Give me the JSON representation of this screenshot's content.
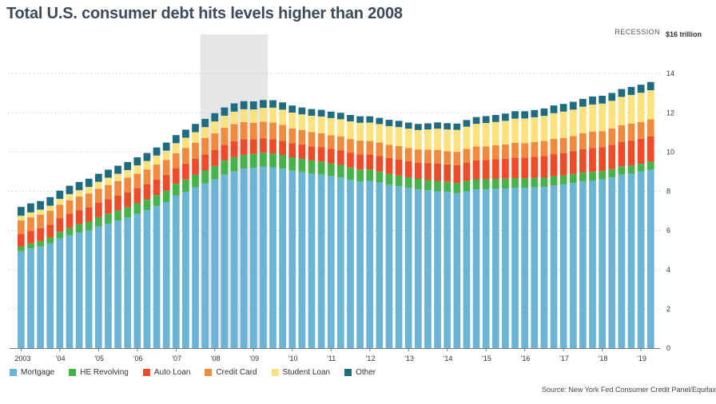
{
  "header": {
    "title": "Total U.S. consumer debt hits levels higher than 2008",
    "recession_label": "RECESSION",
    "unit_label": "$16 trillion"
  },
  "source": "Source: New York Fed Consumer Credit Panel/Equifax",
  "colors": {
    "mortgage": "#6bb4d6",
    "he_revolving": "#45b24a",
    "auto_loan": "#ee4b2b",
    "credit_card": "#f08a3c",
    "student_loan": "#fbe27c",
    "other": "#1f6b80",
    "recession": "#e5e6e8",
    "grid": "#c9cdd2"
  },
  "chart_data": {
    "type": "bar",
    "stacked": true,
    "title": "Total U.S. consumer debt hits levels higher than 2008",
    "xlabel": "",
    "ylabel": "",
    "ylim": [
      0,
      16
    ],
    "y_ticks": [
      0,
      2,
      4,
      6,
      8,
      10,
      12,
      14
    ],
    "x_tick_labels": [
      "2003",
      "'04",
      "'05",
      "'06",
      "'07",
      "'08",
      "'09",
      "'10",
      "'11",
      "'12",
      "'13",
      "'14",
      "'15",
      "'16",
      "'17",
      "'18",
      "'19"
    ],
    "recession_span_quarters": [
      19,
      26
    ],
    "series_names": [
      "Mortgage",
      "HE Revolving",
      "Auto Loan",
      "Credit Card",
      "Student Loan",
      "Other"
    ],
    "quarters": [
      "2003Q1",
      "2003Q2",
      "2003Q3",
      "2003Q4",
      "2004Q1",
      "2004Q2",
      "2004Q3",
      "2004Q4",
      "2005Q1",
      "2005Q2",
      "2005Q3",
      "2005Q4",
      "2006Q1",
      "2006Q2",
      "2006Q3",
      "2006Q4",
      "2007Q1",
      "2007Q2",
      "2007Q3",
      "2007Q4",
      "2008Q1",
      "2008Q2",
      "2008Q3",
      "2008Q4",
      "2009Q1",
      "2009Q2",
      "2009Q3",
      "2009Q4",
      "2010Q1",
      "2010Q2",
      "2010Q3",
      "2010Q4",
      "2011Q1",
      "2011Q2",
      "2011Q3",
      "2011Q4",
      "2012Q1",
      "2012Q2",
      "2012Q3",
      "2012Q4",
      "2013Q1",
      "2013Q2",
      "2013Q3",
      "2013Q4",
      "2014Q1",
      "2014Q2",
      "2014Q3",
      "2014Q4",
      "2015Q1",
      "2015Q2",
      "2015Q3",
      "2015Q4",
      "2016Q1",
      "2016Q2",
      "2016Q3",
      "2016Q4",
      "2017Q1",
      "2017Q2",
      "2017Q3",
      "2017Q4",
      "2018Q1",
      "2018Q2",
      "2018Q3",
      "2018Q4",
      "2019Q1",
      "2019Q2"
    ],
    "series": [
      {
        "name": "Mortgage",
        "values": [
          4.94,
          5.08,
          5.18,
          5.34,
          5.6,
          5.75,
          5.9,
          6.0,
          6.2,
          6.35,
          6.51,
          6.65,
          6.86,
          7.04,
          7.25,
          7.45,
          7.78,
          7.98,
          8.2,
          8.4,
          8.61,
          8.85,
          9.02,
          9.15,
          9.2,
          9.25,
          9.22,
          9.15,
          9.05,
          8.98,
          8.9,
          8.85,
          8.78,
          8.7,
          8.58,
          8.5,
          8.52,
          8.45,
          8.33,
          8.25,
          8.17,
          8.1,
          8.05,
          8.0,
          7.97,
          7.9,
          8.0,
          8.1,
          8.1,
          8.12,
          8.14,
          8.17,
          8.17,
          8.2,
          8.22,
          8.3,
          8.35,
          8.42,
          8.5,
          8.55,
          8.6,
          8.7,
          8.85,
          8.9,
          9.0,
          9.1
        ]
      },
      {
        "name": "HE Revolving",
        "values": [
          0.24,
          0.26,
          0.28,
          0.3,
          0.33,
          0.38,
          0.42,
          0.45,
          0.48,
          0.5,
          0.51,
          0.53,
          0.53,
          0.54,
          0.56,
          0.58,
          0.6,
          0.62,
          0.64,
          0.66,
          0.68,
          0.71,
          0.72,
          0.71,
          0.7,
          0.71,
          0.71,
          0.7,
          0.68,
          0.68,
          0.67,
          0.67,
          0.64,
          0.64,
          0.63,
          0.61,
          0.59,
          0.56,
          0.56,
          0.55,
          0.54,
          0.53,
          0.52,
          0.53,
          0.51,
          0.52,
          0.52,
          0.51,
          0.51,
          0.51,
          0.5,
          0.5,
          0.49,
          0.48,
          0.47,
          0.47,
          0.46,
          0.46,
          0.45,
          0.44,
          0.43,
          0.43,
          0.42,
          0.41,
          0.4,
          0.4
        ]
      },
      {
        "name": "Auto Loan",
        "values": [
          0.64,
          0.64,
          0.65,
          0.66,
          0.7,
          0.71,
          0.72,
          0.73,
          0.73,
          0.75,
          0.76,
          0.77,
          0.77,
          0.78,
          0.79,
          0.8,
          0.79,
          0.81,
          0.81,
          0.81,
          0.81,
          0.81,
          0.81,
          0.79,
          0.75,
          0.74,
          0.73,
          0.72,
          0.71,
          0.72,
          0.72,
          0.72,
          0.74,
          0.75,
          0.76,
          0.77,
          0.77,
          0.79,
          0.8,
          0.82,
          0.82,
          0.83,
          0.87,
          0.89,
          0.89,
          0.91,
          0.94,
          0.96,
          0.98,
          1.0,
          1.02,
          1.05,
          1.06,
          1.08,
          1.1,
          1.12,
          1.14,
          1.16,
          1.19,
          1.22,
          1.22,
          1.24,
          1.26,
          1.27,
          1.28,
          1.3
        ]
      },
      {
        "name": "Credit Card",
        "values": [
          0.69,
          0.69,
          0.69,
          0.7,
          0.68,
          0.7,
          0.69,
          0.71,
          0.71,
          0.72,
          0.73,
          0.74,
          0.73,
          0.74,
          0.76,
          0.77,
          0.77,
          0.8,
          0.82,
          0.85,
          0.85,
          0.87,
          0.87,
          0.87,
          0.84,
          0.84,
          0.84,
          0.81,
          0.76,
          0.74,
          0.73,
          0.72,
          0.69,
          0.7,
          0.69,
          0.7,
          0.68,
          0.68,
          0.68,
          0.68,
          0.67,
          0.67,
          0.68,
          0.69,
          0.67,
          0.68,
          0.7,
          0.71,
          0.7,
          0.71,
          0.73,
          0.75,
          0.73,
          0.75,
          0.77,
          0.78,
          0.77,
          0.78,
          0.81,
          0.83,
          0.81,
          0.83,
          0.84,
          0.87,
          0.85,
          0.87
        ]
      },
      {
        "name": "Student Loan",
        "values": [
          0.24,
          0.25,
          0.26,
          0.26,
          0.3,
          0.31,
          0.32,
          0.33,
          0.36,
          0.37,
          0.38,
          0.39,
          0.43,
          0.44,
          0.46,
          0.47,
          0.51,
          0.52,
          0.54,
          0.55,
          0.61,
          0.61,
          0.64,
          0.66,
          0.68,
          0.71,
          0.76,
          0.78,
          0.81,
          0.8,
          0.83,
          0.85,
          0.88,
          0.88,
          0.9,
          0.91,
          0.94,
          0.94,
          0.95,
          0.97,
          0.99,
          0.99,
          1.03,
          1.08,
          1.11,
          1.12,
          1.13,
          1.16,
          1.19,
          1.19,
          1.2,
          1.23,
          1.26,
          1.26,
          1.28,
          1.31,
          1.34,
          1.34,
          1.36,
          1.38,
          1.41,
          1.41,
          1.44,
          1.46,
          1.49,
          1.48
        ]
      },
      {
        "name": "Other",
        "values": [
          0.45,
          0.46,
          0.44,
          0.44,
          0.42,
          0.43,
          0.42,
          0.42,
          0.41,
          0.41,
          0.41,
          0.41,
          0.41,
          0.41,
          0.41,
          0.41,
          0.41,
          0.41,
          0.42,
          0.42,
          0.42,
          0.42,
          0.42,
          0.41,
          0.41,
          0.4,
          0.38,
          0.37,
          0.36,
          0.35,
          0.34,
          0.34,
          0.33,
          0.33,
          0.33,
          0.33,
          0.32,
          0.32,
          0.32,
          0.32,
          0.31,
          0.31,
          0.31,
          0.32,
          0.32,
          0.32,
          0.34,
          0.34,
          0.35,
          0.36,
          0.37,
          0.38,
          0.37,
          0.37,
          0.38,
          0.39,
          0.39,
          0.4,
          0.4,
          0.41,
          0.4,
          0.4,
          0.4,
          0.41,
          0.41,
          0.42
        ]
      }
    ]
  }
}
